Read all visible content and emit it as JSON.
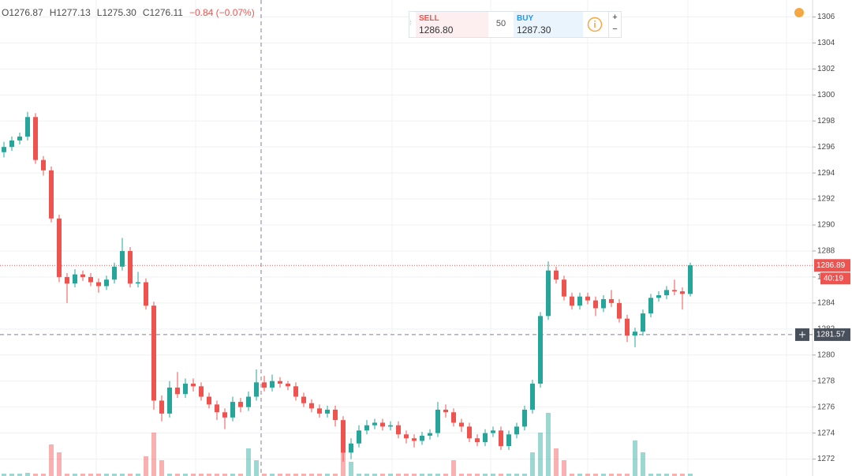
{
  "chart_data": {
    "type": "candlestick",
    "legend": [
      "O1276.87",
      "H1277.13",
      "L1275.30",
      "C1276.11",
      "−0.84 (−0.07%)"
    ],
    "up_color": "#26a69a",
    "down_color": "#ef5350",
    "ylim": [
      1270.7,
      1307.3
    ],
    "yticks": [
      1272,
      1274,
      1276,
      1278,
      1280,
      1282,
      1284,
      1286,
      1288,
      1290,
      1292,
      1294,
      1296,
      1298,
      1300,
      1302,
      1304,
      1306
    ],
    "grid": true,
    "last_price": 1286.89,
    "countdown": "40:19",
    "crosshair_price": 1281.57,
    "open": [
      1295.6,
      1296.0,
      1296.5,
      1296.8,
      1298.3,
      1295.0,
      1294.2,
      1290.5,
      1286.0,
      1285.5,
      1286.2,
      1286.0,
      1285.6,
      1285.3,
      1285.8,
      1286.8,
      1288.0,
      1285.5,
      1285.6,
      1283.8,
      1276.5,
      1275.5,
      1277.5,
      1277.0,
      1277.8,
      1277.6,
      1276.8,
      1276.2,
      1275.6,
      1275.2,
      1276.4,
      1276.0,
      1276.8,
      1277.9,
      1277.5,
      1278.0,
      1277.8,
      1277.6,
      1276.8,
      1276.3,
      1275.9,
      1275.5,
      1275.8,
      1275.0,
      1272.5,
      1273.2,
      1274.2,
      1274.6,
      1274.8,
      1274.5,
      1274.6,
      1273.9,
      1273.6,
      1273.4,
      1273.8,
      1274.0,
      1275.8,
      1275.6,
      1274.8,
      1274.5,
      1273.6,
      1273.3,
      1274.0,
      1274.2,
      1273.0,
      1273.9,
      1274.5,
      1275.8,
      1277.8,
      1283.0,
      1286.5,
      1285.8,
      1284.5,
      1283.8,
      1284.5,
      1284.2,
      1283.6,
      1284.3,
      1284.0,
      1282.8,
      1281.5,
      1281.8,
      1283.2,
      1284.4,
      1284.6,
      1285.0,
      1284.9,
      1284.7
    ],
    "high": [
      1296.4,
      1296.8,
      1297.1,
      1298.7,
      1298.6,
      1295.3,
      1294.5,
      1290.8,
      1286.3,
      1286.6,
      1286.5,
      1286.3,
      1285.9,
      1286.1,
      1287.1,
      1289.0,
      1288.3,
      1286.4,
      1285.9,
      1284.1,
      1276.9,
      1278.0,
      1278.7,
      1278.2,
      1278.2,
      1277.9,
      1277.1,
      1276.5,
      1275.9,
      1276.8,
      1276.7,
      1277.2,
      1278.9,
      1278.4,
      1278.5,
      1278.3,
      1278.0,
      1277.9,
      1277.1,
      1276.6,
      1276.2,
      1276.1,
      1276.1,
      1275.3,
      1273.6,
      1274.6,
      1275.0,
      1275.1,
      1275.1,
      1274.9,
      1274.9,
      1274.2,
      1273.9,
      1274.1,
      1274.3,
      1276.4,
      1276.2,
      1275.9,
      1275.1,
      1274.8,
      1273.9,
      1274.3,
      1274.5,
      1274.5,
      1274.2,
      1274.8,
      1276.1,
      1278.1,
      1283.3,
      1287.2,
      1286.8,
      1286.1,
      1284.8,
      1284.8,
      1284.8,
      1284.5,
      1284.6,
      1285.0,
      1284.3,
      1283.1,
      1282.1,
      1283.5,
      1284.7,
      1284.9,
      1285.3,
      1285.8,
      1285.2,
      1287.1
    ],
    "low": [
      1295.2,
      1295.7,
      1296.2,
      1296.5,
      1294.7,
      1293.8,
      1290.2,
      1285.6,
      1284.0,
      1285.2,
      1285.7,
      1285.3,
      1284.8,
      1285.0,
      1285.5,
      1286.5,
      1285.2,
      1285.2,
      1283.5,
      1275.8,
      1274.9,
      1275.2,
      1276.7,
      1276.7,
      1277.2,
      1276.5,
      1275.9,
      1275.0,
      1274.3,
      1274.9,
      1275.6,
      1275.7,
      1276.5,
      1277.2,
      1277.2,
      1277.5,
      1277.3,
      1276.5,
      1276.0,
      1275.6,
      1275.2,
      1275.2,
      1274.5,
      1271.8,
      1272.0,
      1272.9,
      1273.9,
      1274.3,
      1274.2,
      1274.2,
      1273.6,
      1273.2,
      1272.9,
      1273.1,
      1273.5,
      1273.7,
      1275.2,
      1274.5,
      1274.1,
      1273.3,
      1273.0,
      1273.0,
      1273.7,
      1272.7,
      1272.7,
      1273.6,
      1274.2,
      1275.5,
      1277.5,
      1282.7,
      1285.5,
      1284.2,
      1283.5,
      1283.5,
      1283.9,
      1283.0,
      1283.3,
      1283.7,
      1282.5,
      1281.0,
      1280.6,
      1281.5,
      1282.9,
      1284.1,
      1284.3,
      1284.6,
      1283.5,
      1284.5
    ],
    "close": [
      1296.0,
      1296.5,
      1296.8,
      1298.3,
      1295.0,
      1294.2,
      1290.5,
      1286.0,
      1285.5,
      1286.2,
      1286.0,
      1285.6,
      1285.3,
      1285.8,
      1286.8,
      1288.0,
      1285.5,
      1285.6,
      1283.8,
      1276.5,
      1275.5,
      1277.5,
      1277.0,
      1277.8,
      1277.6,
      1276.8,
      1276.2,
      1275.6,
      1275.2,
      1276.4,
      1276.0,
      1276.8,
      1277.9,
      1277.5,
      1278.0,
      1277.8,
      1277.6,
      1276.8,
      1276.3,
      1275.9,
      1275.5,
      1275.8,
      1275.0,
      1272.5,
      1273.2,
      1274.2,
      1274.6,
      1274.8,
      1274.5,
      1274.6,
      1273.9,
      1273.6,
      1273.4,
      1273.8,
      1274.0,
      1275.8,
      1275.6,
      1274.8,
      1274.5,
      1273.6,
      1273.3,
      1274.0,
      1274.2,
      1273.0,
      1273.9,
      1274.5,
      1275.8,
      1277.8,
      1283.0,
      1286.5,
      1285.8,
      1284.5,
      1283.8,
      1284.5,
      1284.2,
      1283.6,
      1284.3,
      1284.0,
      1282.8,
      1281.5,
      1281.8,
      1283.2,
      1284.4,
      1284.6,
      1285.0,
      1284.9,
      1284.7,
      1286.9
    ],
    "volume": [
      3,
      3,
      3,
      4,
      3,
      3,
      40,
      30,
      3,
      3,
      3,
      3,
      3,
      3,
      3,
      3,
      3,
      3,
      25,
      55,
      20,
      3,
      3,
      3,
      3,
      3,
      3,
      3,
      3,
      3,
      3,
      35,
      20,
      3,
      3,
      3,
      3,
      3,
      3,
      3,
      3,
      3,
      3,
      30,
      18,
      3,
      3,
      3,
      3,
      3,
      3,
      3,
      3,
      3,
      3,
      3,
      3,
      20,
      3,
      3,
      3,
      3,
      3,
      3,
      3,
      3,
      3,
      30,
      55,
      80,
      35,
      20,
      3,
      3,
      3,
      3,
      3,
      3,
      3,
      3,
      45,
      30,
      3,
      3,
      3,
      3,
      3,
      3
    ]
  },
  "trade_panel": {
    "sell_label": "SELL",
    "sell_price": "1286.80",
    "quantity": "50",
    "buy_label": "BUY",
    "buy_price": "1287.30",
    "plus": "+",
    "minus": "−"
  }
}
